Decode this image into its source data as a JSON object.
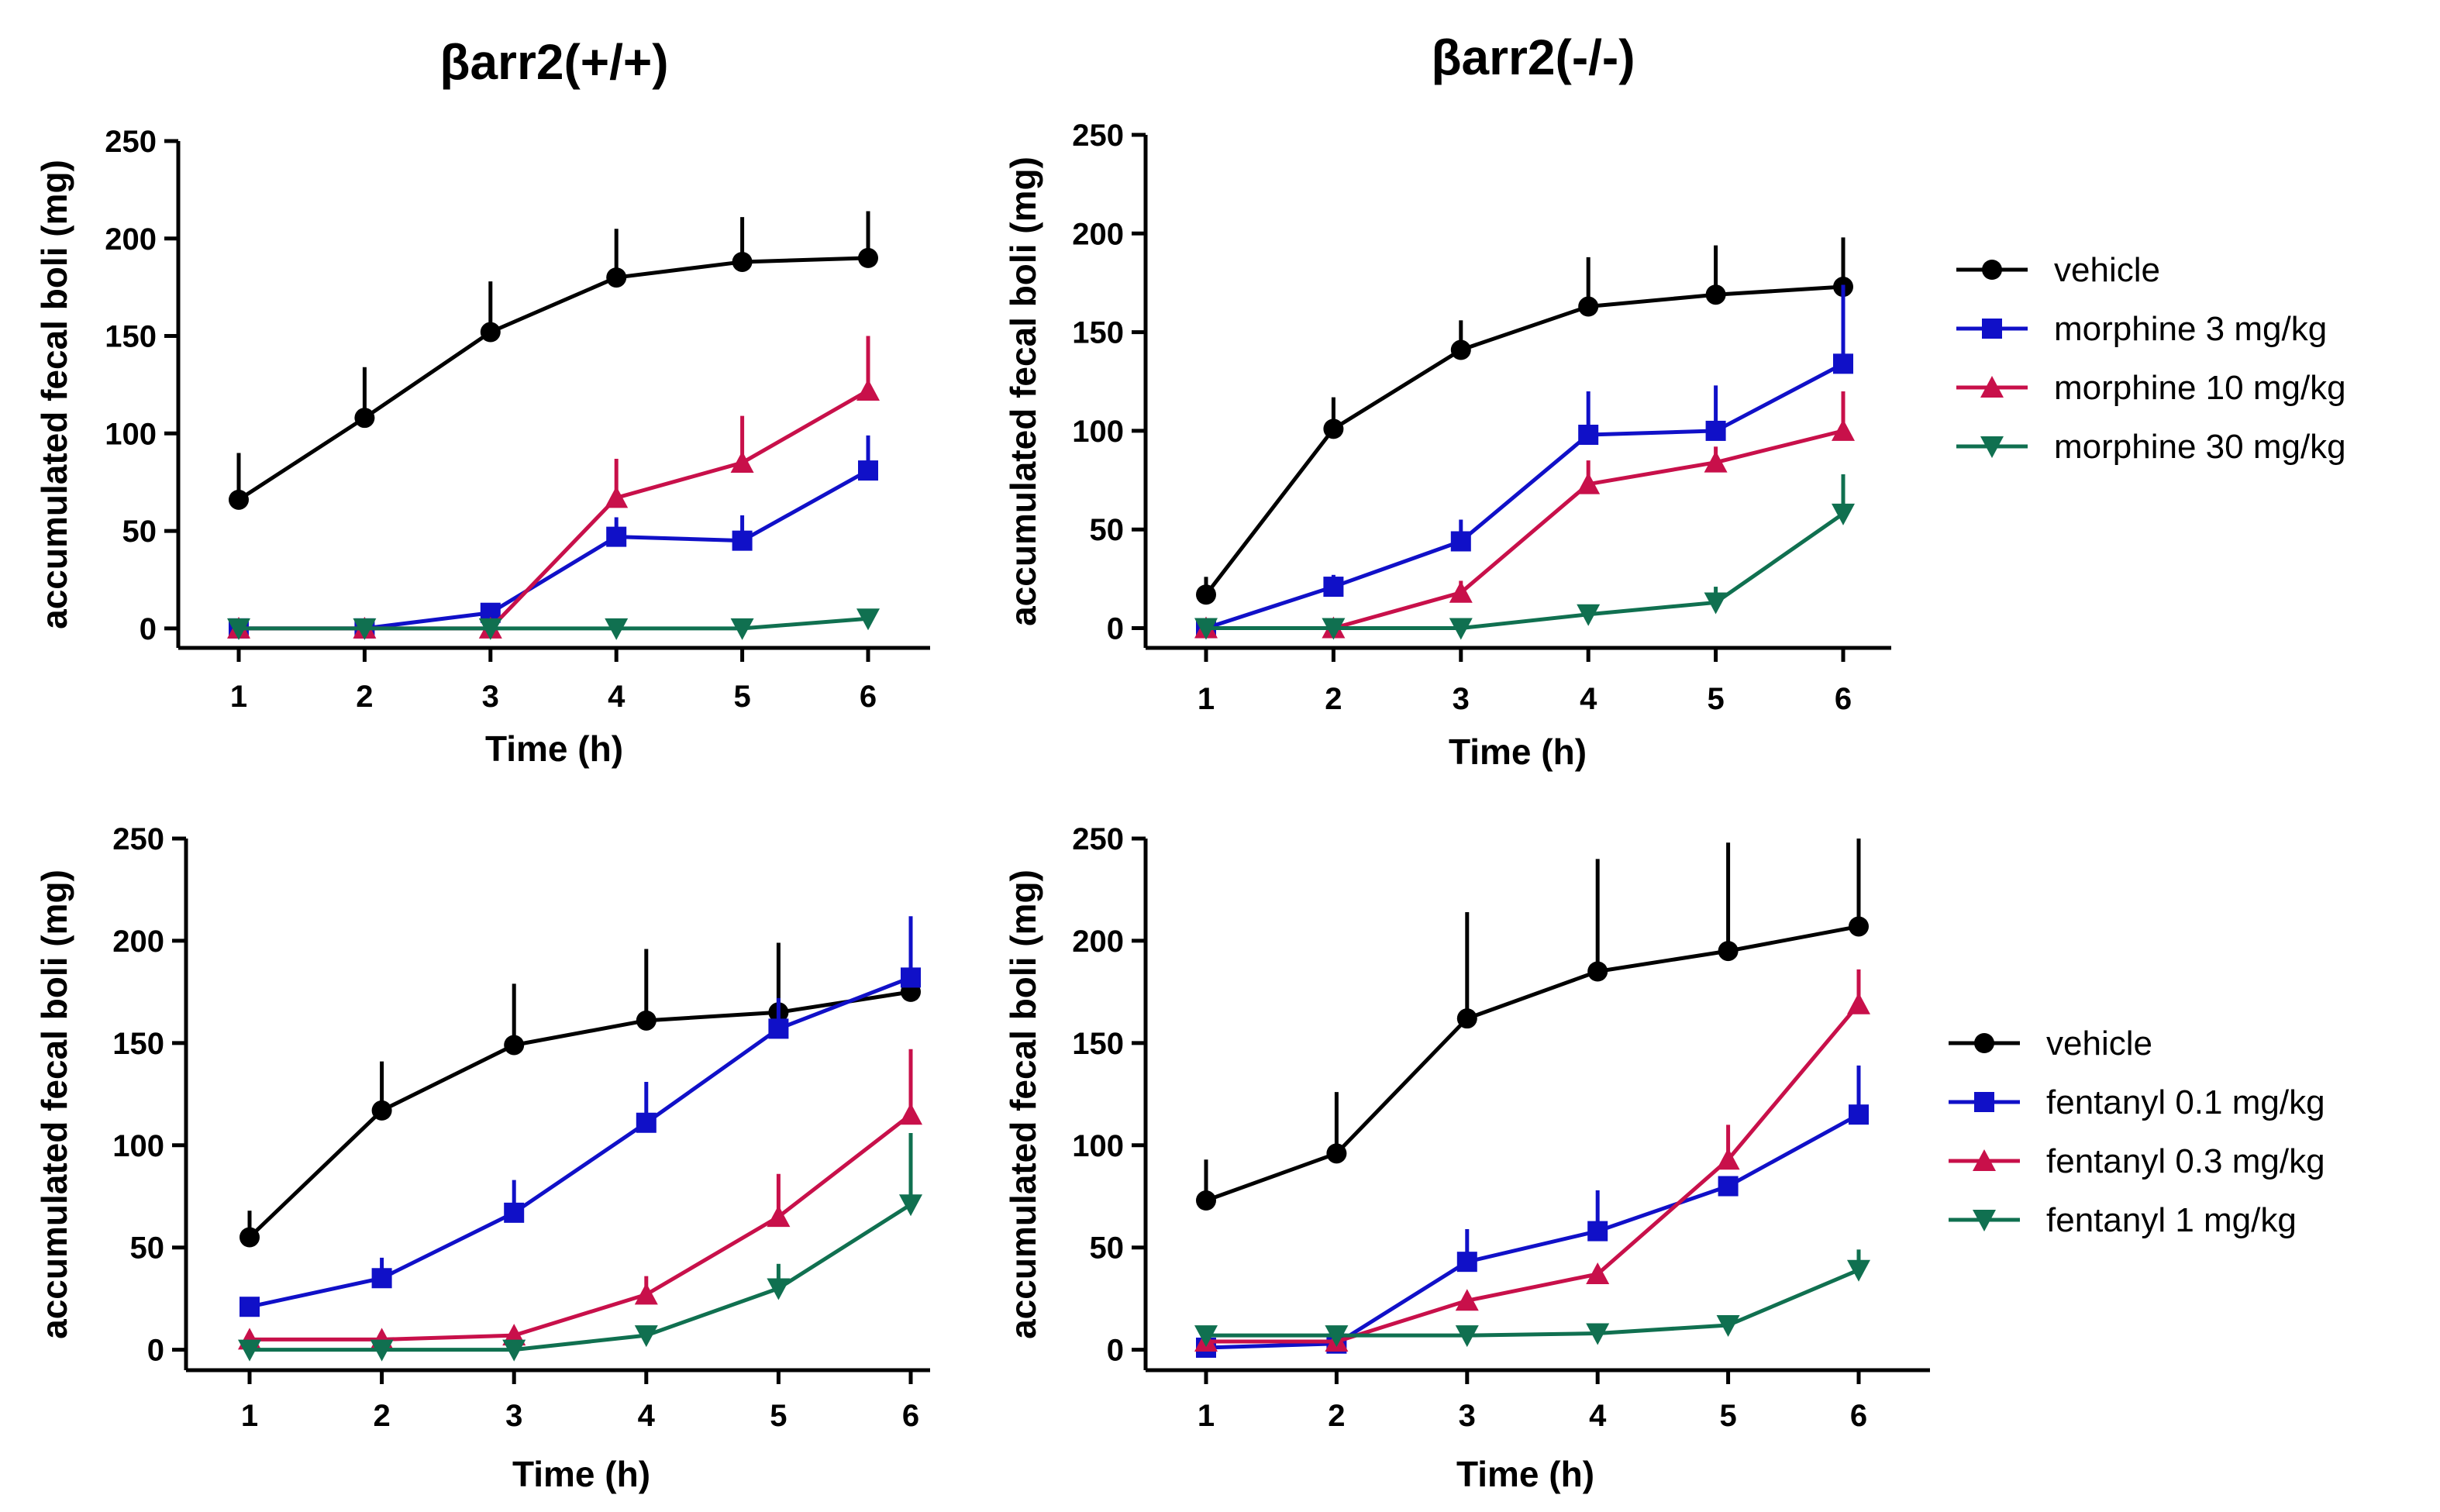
{
  "figure": {
    "column_titles": [
      "βarr2(+/+)",
      "βarr2(-/-)"
    ]
  },
  "colors": {
    "black": "#000000",
    "blue": "#1010c8",
    "crimson": "#c8104a",
    "green": "#107050"
  },
  "legends": [
    {
      "items": [
        {
          "label": "vehicle",
          "color": "#000000",
          "marker": "circle"
        },
        {
          "label": "morphine 3 mg/kg",
          "color": "#1010c8",
          "marker": "square"
        },
        {
          "label": "morphine 10 mg/kg",
          "color": "#c8104a",
          "marker": "triangle-up"
        },
        {
          "label": "morphine 30 mg/kg",
          "color": "#107050",
          "marker": "triangle-down"
        }
      ]
    },
    {
      "items": [
        {
          "label": "vehicle",
          "color": "#000000",
          "marker": "circle"
        },
        {
          "label": "fentanyl 0.1 mg/kg",
          "color": "#1010c8",
          "marker": "square"
        },
        {
          "label": "fentanyl 0.3 mg/kg",
          "color": "#c8104a",
          "marker": "triangle-up"
        },
        {
          "label": "fentanyl 1 mg/kg",
          "color": "#107050",
          "marker": "triangle-down"
        }
      ]
    }
  ],
  "chart_data": [
    {
      "type": "line",
      "title": "βarr2(+/+)",
      "xlabel": "Time (h)",
      "ylabel": "accumulated fecal boli (mg)",
      "x": [
        1,
        2,
        3,
        4,
        5,
        6
      ],
      "xlim": [
        0.5,
        6.5
      ],
      "ylim": [
        -10,
        250
      ],
      "yticks": [
        0,
        50,
        100,
        150,
        200,
        250
      ],
      "series": [
        {
          "name": "vehicle",
          "color": "#000000",
          "marker": "circle",
          "values": [
            66,
            108,
            152,
            180,
            188,
            190
          ],
          "error": [
            24,
            26,
            26,
            25,
            23,
            24
          ]
        },
        {
          "name": "morphine 3 mg/kg",
          "color": "#1010c8",
          "marker": "square",
          "values": [
            0,
            0,
            8,
            47,
            45,
            81
          ],
          "error": [
            0,
            0,
            0,
            10,
            13,
            18
          ]
        },
        {
          "name": "morphine 10 mg/kg",
          "color": "#c8104a",
          "marker": "triangle-up",
          "values": [
            0,
            0,
            0,
            67,
            85,
            122
          ],
          "error": [
            0,
            0,
            0,
            20,
            24,
            28
          ]
        },
        {
          "name": "morphine 30 mg/kg",
          "color": "#107050",
          "marker": "triangle-down",
          "values": [
            0,
            0,
            0,
            0,
            0,
            5
          ],
          "error": [
            0,
            0,
            0,
            0,
            0,
            0
          ]
        }
      ]
    },
    {
      "type": "line",
      "title": "βarr2(-/-)",
      "xlabel": "Time (h)",
      "ylabel": "accumulated fecal boli (mg)",
      "x": [
        1,
        2,
        3,
        4,
        5,
        6
      ],
      "xlim": [
        0.5,
        6.5
      ],
      "ylim": [
        -10,
        250
      ],
      "yticks": [
        0,
        50,
        100,
        150,
        200,
        250
      ],
      "series": [
        {
          "name": "vehicle",
          "color": "#000000",
          "marker": "circle",
          "values": [
            17,
            101,
            141,
            163,
            169,
            173
          ],
          "error": [
            9,
            16,
            15,
            25,
            25,
            25
          ]
        },
        {
          "name": "morphine 3 mg/kg",
          "color": "#1010c8",
          "marker": "square",
          "values": [
            0,
            21,
            44,
            98,
            100,
            134
          ],
          "error": [
            0,
            6,
            11,
            22,
            23,
            40
          ]
        },
        {
          "name": "morphine 10 mg/kg",
          "color": "#c8104a",
          "marker": "triangle-up",
          "values": [
            0,
            0,
            18,
            73,
            84,
            100
          ],
          "error": [
            0,
            0,
            6,
            12,
            8,
            20
          ]
        },
        {
          "name": "morphine 30 mg/kg",
          "color": "#107050",
          "marker": "triangle-down",
          "values": [
            0,
            0,
            0,
            7,
            13,
            58
          ],
          "error": [
            0,
            0,
            0,
            0,
            8,
            20
          ]
        }
      ]
    },
    {
      "type": "line",
      "title": "",
      "xlabel": "Time (h)",
      "ylabel": "accumulated fecal boli (mg)",
      "x": [
        1,
        2,
        3,
        4,
        5,
        6
      ],
      "xlim": [
        0.5,
        6.5
      ],
      "ylim": [
        -10,
        250
      ],
      "yticks": [
        0,
        50,
        100,
        150,
        200,
        250
      ],
      "series": [
        {
          "name": "vehicle",
          "color": "#000000",
          "marker": "circle",
          "values": [
            55,
            117,
            149,
            161,
            165,
            175
          ],
          "error": [
            13,
            24,
            30,
            35,
            34,
            33
          ]
        },
        {
          "name": "fentanyl 0.1 mg/kg",
          "color": "#1010c8",
          "marker": "square",
          "values": [
            21,
            35,
            67,
            111,
            157,
            182
          ],
          "error": [
            0,
            10,
            16,
            20,
            15,
            30
          ]
        },
        {
          "name": "fentanyl 0.3 mg/kg",
          "color": "#c8104a",
          "marker": "triangle-up",
          "values": [
            5,
            5,
            7,
            27,
            65,
            115
          ],
          "error": [
            0,
            0,
            0,
            9,
            21,
            32
          ]
        },
        {
          "name": "fentanyl 1 mg/kg",
          "color": "#107050",
          "marker": "triangle-down",
          "values": [
            0,
            0,
            0,
            7,
            30,
            71
          ],
          "error": [
            0,
            0,
            0,
            0,
            12,
            35
          ]
        }
      ]
    },
    {
      "type": "line",
      "title": "",
      "xlabel": "Time (h)",
      "ylabel": "accumulated fecal boli (mg)",
      "x": [
        1,
        2,
        3,
        4,
        5,
        6
      ],
      "xlim": [
        0.5,
        6.5
      ],
      "ylim": [
        -10,
        250
      ],
      "yticks": [
        0,
        50,
        100,
        150,
        200,
        250
      ],
      "series": [
        {
          "name": "vehicle",
          "color": "#000000",
          "marker": "circle",
          "values": [
            73,
            96,
            162,
            185,
            195,
            207
          ],
          "error": [
            20,
            30,
            52,
            55,
            53,
            43
          ]
        },
        {
          "name": "fentanyl 0.1 mg/kg",
          "color": "#1010c8",
          "marker": "square",
          "values": [
            1,
            3,
            43,
            58,
            80,
            115
          ],
          "error": [
            0,
            0,
            16,
            20,
            0,
            24
          ]
        },
        {
          "name": "fentanyl 0.3 mg/kg",
          "color": "#c8104a",
          "marker": "triangle-up",
          "values": [
            4,
            4,
            24,
            37,
            93,
            169
          ],
          "error": [
            0,
            0,
            0,
            0,
            17,
            17
          ]
        },
        {
          "name": "fentanyl 1 mg/kg",
          "color": "#107050",
          "marker": "triangle-down",
          "values": [
            7,
            7,
            7,
            8,
            12,
            39
          ],
          "error": [
            0,
            0,
            0,
            0,
            0,
            10
          ]
        }
      ]
    }
  ]
}
